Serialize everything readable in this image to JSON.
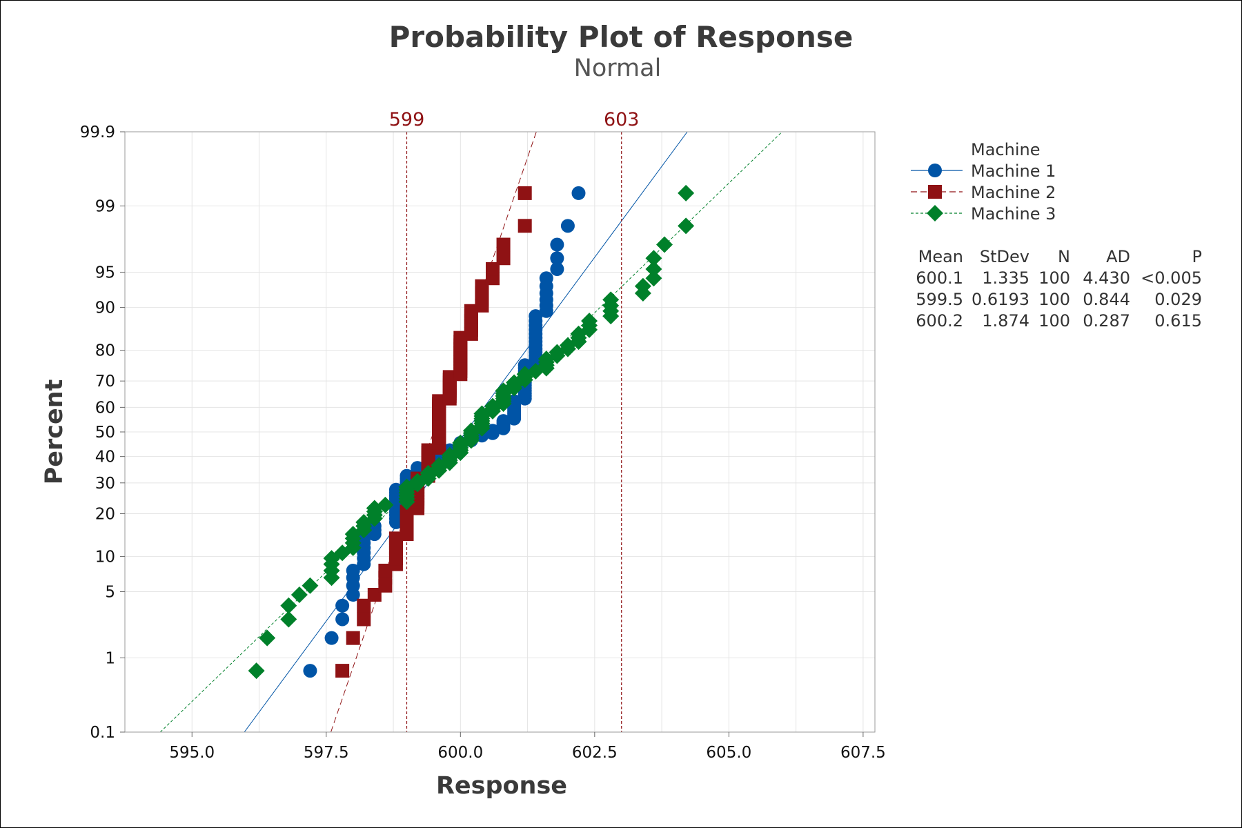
{
  "chart_data": {
    "type": "scatter",
    "subtype": "normal probability plot",
    "title": "Probability Plot of Response",
    "subtitle": "Normal",
    "xlabel": "Response",
    "ylabel": "Percent",
    "xlim": [
      593.75,
      607.72
    ],
    "ylim_percent": [
      0.1,
      99.9
    ],
    "x_ticks": [
      "595.0",
      "597.5",
      "600.0",
      "602.5",
      "605.0",
      "607.5"
    ],
    "x_tick_values": [
      595.0,
      597.5,
      600.0,
      602.5,
      605.0,
      607.5
    ],
    "y_ticks": [
      "0.1",
      "1",
      "5",
      "10",
      "20",
      "30",
      "40",
      "50",
      "60",
      "70",
      "80",
      "90",
      "95",
      "99",
      "99.9"
    ],
    "y_tick_values": [
      0.1,
      1,
      5,
      10,
      20,
      30,
      40,
      50,
      60,
      70,
      80,
      90,
      95,
      99,
      99.9
    ],
    "grid": true,
    "reference_lines": [
      {
        "label": "599",
        "x": 599
      },
      {
        "label": "603",
        "x": 603
      }
    ],
    "reference_color": "#8F1214",
    "legend": {
      "title": "Machine",
      "placement": "right",
      "stats_headers": [
        "Mean",
        "StDev",
        "N",
        "AD",
        "P"
      ]
    },
    "series": [
      {
        "name": "Machine 1",
        "marker": "circle",
        "line": "solid",
        "color": "#0054A6",
        "stats": [
          "600.1",
          "1.335",
          "100",
          "4.430",
          "<0.005"
        ],
        "mean": 600.1,
        "stdev": 1.335,
        "value_counts": [
          [
            597.2,
            1
          ],
          [
            597.6,
            1
          ],
          [
            597.8,
            2
          ],
          [
            598.0,
            4
          ],
          [
            598.2,
            6
          ],
          [
            598.4,
            3
          ],
          [
            598.8,
            11
          ],
          [
            599.0,
            5
          ],
          [
            599.2,
            3
          ],
          [
            599.4,
            2
          ],
          [
            599.6,
            3
          ],
          [
            599.8,
            2
          ],
          [
            600.0,
            3
          ],
          [
            600.2,
            2
          ],
          [
            600.4,
            1
          ],
          [
            600.6,
            2
          ],
          [
            600.8,
            4
          ],
          [
            601.0,
            8
          ],
          [
            601.2,
            13
          ],
          [
            601.4,
            13
          ],
          [
            601.6,
            6
          ],
          [
            601.8,
            3
          ],
          [
            602.0,
            1
          ],
          [
            602.2,
            1
          ]
        ]
      },
      {
        "name": "Machine 2",
        "marker": "square",
        "line": "dashed",
        "color": "#8F1214",
        "stats": [
          "599.5",
          "0.6193",
          "100",
          "0.844",
          "0.029"
        ],
        "mean": 599.5,
        "stdev": 0.6193,
        "value_counts": [
          [
            597.8,
            1
          ],
          [
            598.0,
            1
          ],
          [
            598.2,
            2
          ],
          [
            598.4,
            1
          ],
          [
            598.6,
            3
          ],
          [
            598.8,
            6
          ],
          [
            599.0,
            7
          ],
          [
            599.2,
            11
          ],
          [
            599.4,
            11
          ],
          [
            599.6,
            20
          ],
          [
            599.8,
            9
          ],
          [
            600.0,
            12
          ],
          [
            600.2,
            6
          ],
          [
            600.4,
            4
          ],
          [
            600.6,
            2
          ],
          [
            600.8,
            2
          ],
          [
            601.2,
            2
          ]
        ]
      },
      {
        "name": "Machine 3",
        "marker": "diamond",
        "line": "dotted",
        "color": "#00802A",
        "stats": [
          "600.2",
          "1.874",
          "100",
          "0.287",
          "0.615"
        ],
        "mean": 600.2,
        "stdev": 1.874,
        "value_counts": [
          [
            596.2,
            1
          ],
          [
            596.4,
            1
          ],
          [
            596.8,
            2
          ],
          [
            597.0,
            1
          ],
          [
            597.2,
            1
          ],
          [
            597.6,
            4
          ],
          [
            597.8,
            1
          ],
          [
            598.0,
            4
          ],
          [
            598.2,
            3
          ],
          [
            598.4,
            4
          ],
          [
            598.6,
            1
          ],
          [
            599.0,
            6
          ],
          [
            599.2,
            2
          ],
          [
            599.4,
            3
          ],
          [
            599.6,
            3
          ],
          [
            599.8,
            4
          ],
          [
            600.0,
            5
          ],
          [
            600.2,
            5
          ],
          [
            600.4,
            7
          ],
          [
            600.6,
            3
          ],
          [
            600.8,
            6
          ],
          [
            601.0,
            3
          ],
          [
            601.2,
            3
          ],
          [
            601.4,
            1
          ],
          [
            601.6,
            4
          ],
          [
            601.8,
            2
          ],
          [
            602.0,
            2
          ],
          [
            602.2,
            3
          ],
          [
            602.4,
            3
          ],
          [
            602.8,
            4
          ],
          [
            603.4,
            2
          ],
          [
            603.6,
            3
          ],
          [
            603.8,
            1
          ],
          [
            604.2,
            2
          ]
        ]
      }
    ]
  }
}
